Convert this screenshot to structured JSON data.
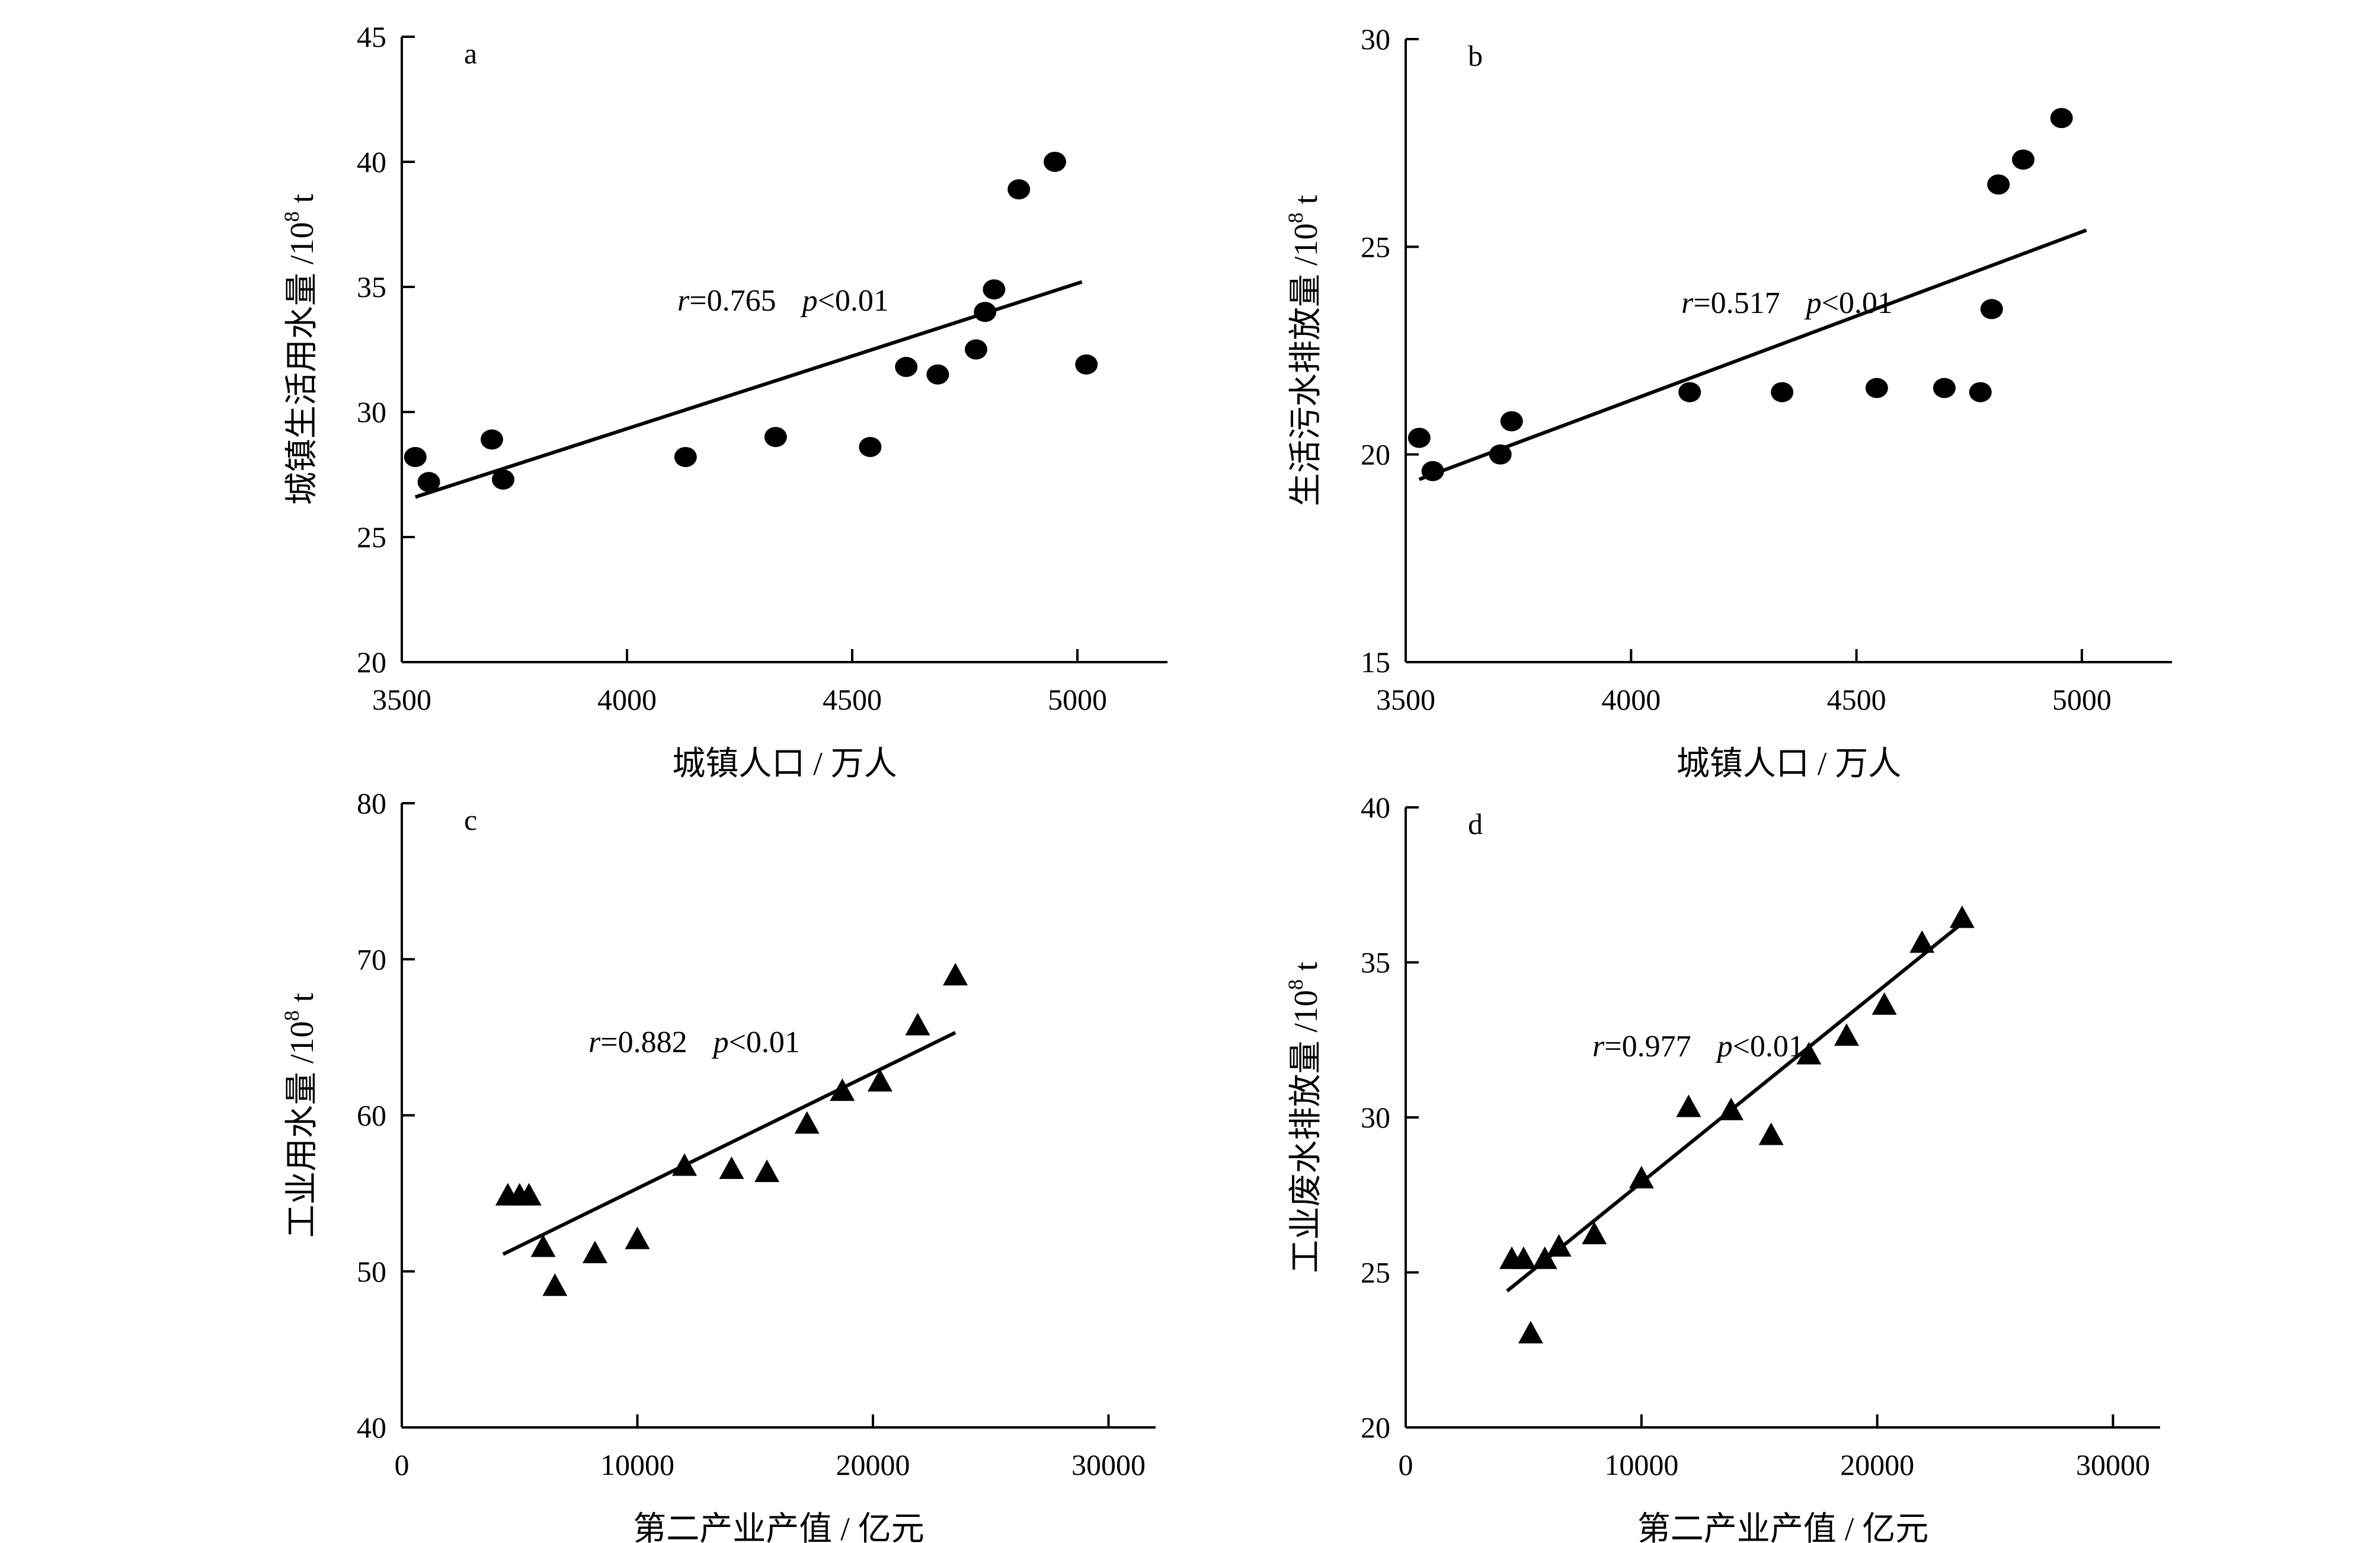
{
  "chart_data": [
    {
      "id": "a",
      "type": "scatter",
      "panel_label": "a",
      "xlabel": "城镇人口 / 万人",
      "ylabel": "城镇生活用水量 /10",
      "ylabel_sup": "8",
      "ylabel_unit": " t",
      "xlim": [
        3500,
        5200
      ],
      "ylim": [
        20,
        45
      ],
      "xticks": [
        3500,
        4000,
        4500,
        5000
      ],
      "yticks": [
        20,
        25,
        30,
        35,
        40,
        45
      ],
      "marker": "circle",
      "points": [
        {
          "x": 3530,
          "y": 28.2
        },
        {
          "x": 3560,
          "y": 27.2
        },
        {
          "x": 3700,
          "y": 28.9
        },
        {
          "x": 3725,
          "y": 27.3
        },
        {
          "x": 4130,
          "y": 28.2
        },
        {
          "x": 4330,
          "y": 29.0
        },
        {
          "x": 4540,
          "y": 28.6
        },
        {
          "x": 4620,
          "y": 31.8
        },
        {
          "x": 4690,
          "y": 31.5
        },
        {
          "x": 4775,
          "y": 32.5
        },
        {
          "x": 4795,
          "y": 34.0
        },
        {
          "x": 4815,
          "y": 34.9
        },
        {
          "x": 4870,
          "y": 38.9
        },
        {
          "x": 4950,
          "y": 40.0
        },
        {
          "x": 5020,
          "y": 31.9
        }
      ],
      "fit": {
        "x1": 3530,
        "y1": 26.6,
        "x2": 5010,
        "y2": 35.2
      },
      "annotation": {
        "r_label": "r",
        "r_text": "=0.765",
        "p_label": "p",
        "p_text": "<0.01"
      }
    },
    {
      "id": "b",
      "type": "scatter",
      "panel_label": "b",
      "xlabel": "城镇人口 / 万人",
      "ylabel": "生活污水排放量 /10",
      "ylabel_sup": "8",
      "ylabel_unit": " t",
      "xlim": [
        3500,
        5200
      ],
      "ylim": [
        15,
        30
      ],
      "xticks": [
        3500,
        4000,
        4500,
        5000
      ],
      "yticks": [
        15,
        20,
        25,
        30
      ],
      "marker": "circle",
      "points": [
        {
          "x": 3530,
          "y": 20.4
        },
        {
          "x": 3560,
          "y": 19.6
        },
        {
          "x": 3710,
          "y": 20.0
        },
        {
          "x": 3735,
          "y": 20.8
        },
        {
          "x": 4130,
          "y": 21.5
        },
        {
          "x": 4335,
          "y": 21.5
        },
        {
          "x": 4545,
          "y": 21.6
        },
        {
          "x": 4695,
          "y": 21.6
        },
        {
          "x": 4775,
          "y": 21.5
        },
        {
          "x": 4800,
          "y": 23.5
        },
        {
          "x": 4815,
          "y": 26.5
        },
        {
          "x": 4870,
          "y": 27.1
        },
        {
          "x": 4955,
          "y": 28.1
        }
      ],
      "fit": {
        "x1": 3530,
        "y1": 19.4,
        "x2": 5010,
        "y2": 25.4
      },
      "annotation": {
        "r_label": "r",
        "r_text": "=0.517",
        "p_label": "p",
        "p_text": "<0.01"
      }
    },
    {
      "id": "c",
      "type": "scatter",
      "panel_label": "c",
      "xlabel": "第二产业产值 / 亿元",
      "ylabel": "工业用水量 /10",
      "ylabel_sup": "8",
      "ylabel_unit": " t",
      "xlim": [
        0,
        32000
      ],
      "ylim": [
        40,
        80
      ],
      "xticks": [
        0,
        10000,
        20000,
        30000
      ],
      "yticks": [
        40,
        50,
        60,
        70,
        80
      ],
      "marker": "triangle",
      "points": [
        {
          "x": 4500,
          "y": 54.8
        },
        {
          "x": 5000,
          "y": 54.8
        },
        {
          "x": 5400,
          "y": 54.8
        },
        {
          "x": 6000,
          "y": 51.5
        },
        {
          "x": 6500,
          "y": 49.0
        },
        {
          "x": 8200,
          "y": 51.1
        },
        {
          "x": 10000,
          "y": 52.0
        },
        {
          "x": 12000,
          "y": 56.7
        },
        {
          "x": 14000,
          "y": 56.5
        },
        {
          "x": 15500,
          "y": 56.3
        },
        {
          "x": 17200,
          "y": 59.4
        },
        {
          "x": 18700,
          "y": 61.5
        },
        {
          "x": 20300,
          "y": 62.1
        },
        {
          "x": 21900,
          "y": 65.7
        },
        {
          "x": 23500,
          "y": 68.9
        }
      ],
      "fit": {
        "x1": 4300,
        "y1": 51.1,
        "x2": 23500,
        "y2": 65.3
      },
      "annotation": {
        "r_label": "r",
        "r_text": "=0.882",
        "p_label": "p",
        "p_text": "<0.01"
      }
    },
    {
      "id": "d",
      "type": "scatter",
      "panel_label": "d",
      "xlabel": "第二产业产值 / 亿元",
      "ylabel": "工业废水排放量 /10",
      "ylabel_sup": "8",
      "ylabel_unit": " t",
      "xlim": [
        0,
        32000
      ],
      "ylim": [
        20,
        40
      ],
      "xticks": [
        0,
        10000,
        20000,
        30000
      ],
      "yticks": [
        20,
        25,
        30,
        35,
        40
      ],
      "marker": "triangle",
      "points": [
        {
          "x": 4500,
          "y": 25.4
        },
        {
          "x": 5000,
          "y": 25.4
        },
        {
          "x": 5300,
          "y": 23.0
        },
        {
          "x": 5900,
          "y": 25.4
        },
        {
          "x": 6500,
          "y": 25.8
        },
        {
          "x": 8000,
          "y": 26.2
        },
        {
          "x": 10000,
          "y": 28.0
        },
        {
          "x": 12000,
          "y": 30.3
        },
        {
          "x": 13800,
          "y": 30.2
        },
        {
          "x": 15500,
          "y": 29.4
        },
        {
          "x": 17100,
          "y": 32.0
        },
        {
          "x": 18700,
          "y": 32.6
        },
        {
          "x": 20300,
          "y": 33.6
        },
        {
          "x": 21900,
          "y": 35.6
        },
        {
          "x": 23600,
          "y": 36.4
        }
      ],
      "fit": {
        "x1": 4300,
        "y1": 24.4,
        "x2": 23500,
        "y2": 36.2
      },
      "annotation": {
        "r_label": "r",
        "r_text": "=0.977",
        "p_label": "p",
        "p_text": "<0.01"
      }
    }
  ]
}
